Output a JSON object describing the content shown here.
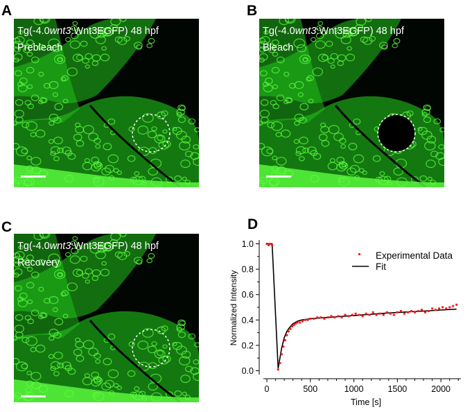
{
  "panels": [
    {
      "letter": "A",
      "title_pre": "Tg(-4.0",
      "title_gene": "wnt3",
      "title_post": ":Wnt3EGFP) 48 hpf",
      "state": "Prebleach"
    },
    {
      "letter": "B",
      "title_pre": "Tg(-4.0",
      "title_gene": "wnt3",
      "title_post": ":Wnt3EGFP) 48 hpf",
      "state": "Bleach"
    },
    {
      "letter": "C",
      "title_pre": "Tg(-4.0",
      "title_gene": "wnt3",
      "title_post": ":Wnt3EGFP) 48 hpf",
      "state": "Recovery"
    },
    {
      "letter": "D"
    }
  ],
  "colors": {
    "tissue": "#22c41c",
    "tissue_bright": "#5cff3f",
    "background": "#020602",
    "experimental": "#ff1a1a",
    "fit": "#000000"
  },
  "chart_data": {
    "type": "scatter",
    "xlabel": "Time [s]",
    "ylabel": "Normalized Intensity",
    "xlim": [
      -40,
      2230
    ],
    "ylim": [
      -0.03,
      1.03
    ],
    "xticks": [
      0,
      500,
      1000,
      1500,
      2000
    ],
    "yticks": [
      0.0,
      0.2,
      0.4,
      0.6,
      0.8,
      1.0
    ],
    "ytick_labels": [
      "0.0",
      "0.2",
      "0.4",
      "0.6",
      "0.8",
      "1.0"
    ],
    "legend_position": "top-right",
    "series": [
      {
        "name": "Experimental Data",
        "style": "points",
        "x": [
          0,
          20,
          40,
          60,
          130,
          150,
          170,
          190,
          210,
          230,
          250,
          270,
          290,
          310,
          330,
          350,
          380,
          410,
          440,
          470,
          500,
          540,
          580,
          620,
          660,
          700,
          740,
          780,
          820,
          860,
          900,
          940,
          980,
          1020,
          1060,
          1100,
          1140,
          1180,
          1220,
          1260,
          1300,
          1340,
          1380,
          1420,
          1460,
          1500,
          1540,
          1580,
          1620,
          1660,
          1700,
          1740,
          1780,
          1820,
          1860,
          1900,
          1940,
          1980,
          2020,
          2060,
          2100,
          2140,
          2180
        ],
        "y": [
          1.0,
          0.99,
          1.0,
          0.99,
          0.01,
          0.06,
          0.13,
          0.19,
          0.24,
          0.28,
          0.31,
          0.33,
          0.35,
          0.36,
          0.37,
          0.38,
          0.38,
          0.39,
          0.4,
          0.4,
          0.41,
          0.41,
          0.42,
          0.42,
          0.41,
          0.42,
          0.43,
          0.42,
          0.43,
          0.42,
          0.44,
          0.43,
          0.44,
          0.45,
          0.44,
          0.43,
          0.45,
          0.44,
          0.46,
          0.44,
          0.45,
          0.44,
          0.46,
          0.45,
          0.44,
          0.46,
          0.47,
          0.45,
          0.46,
          0.47,
          0.46,
          0.47,
          0.48,
          0.46,
          0.47,
          0.49,
          0.48,
          0.49,
          0.5,
          0.49,
          0.5,
          0.51,
          0.52
        ]
      },
      {
        "name": "Fit",
        "style": "line",
        "x": [
          0,
          60,
          130,
          150,
          170,
          200,
          230,
          260,
          300,
          350,
          400,
          500,
          600,
          800,
          1000,
          1200,
          1400,
          1600,
          1800,
          2000,
          2180
        ],
        "y": [
          1.0,
          1.0,
          0.02,
          0.1,
          0.18,
          0.26,
          0.31,
          0.34,
          0.37,
          0.39,
          0.4,
          0.41,
          0.415,
          0.425,
          0.435,
          0.445,
          0.455,
          0.463,
          0.47,
          0.478,
          0.485
        ]
      }
    ]
  }
}
